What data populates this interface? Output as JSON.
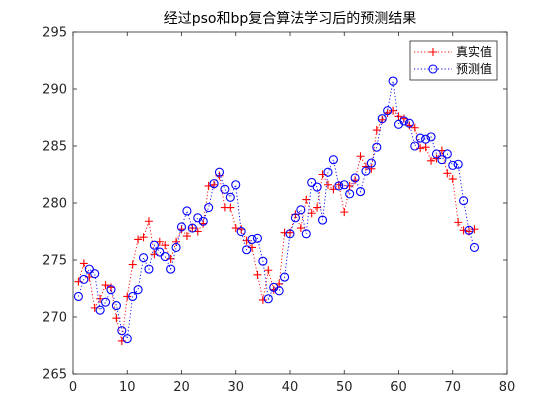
{
  "chart_data": {
    "type": "line",
    "title": "经过pso和bp复合算法学习后的预测结果",
    "xlabel": "",
    "ylabel": "",
    "xlim": [
      0,
      80
    ],
    "ylim": [
      265,
      295
    ],
    "xticks": [
      0,
      10,
      20,
      30,
      40,
      50,
      60,
      70,
      80
    ],
    "yticks": [
      265,
      270,
      275,
      280,
      285,
      290,
      295
    ],
    "grid": false,
    "legend_position": "top-right",
    "x": [
      1,
      2,
      3,
      4,
      5,
      6,
      7,
      8,
      9,
      10,
      11,
      12,
      13,
      14,
      15,
      16,
      17,
      18,
      19,
      20,
      21,
      22,
      23,
      24,
      25,
      26,
      27,
      28,
      29,
      30,
      31,
      32,
      33,
      34,
      35,
      36,
      37,
      38,
      39,
      40,
      41,
      42,
      43,
      44,
      45,
      46,
      47,
      48,
      49,
      50,
      51,
      52,
      53,
      54,
      55,
      56,
      57,
      58,
      59,
      60,
      61,
      62,
      63,
      64,
      65,
      66,
      67,
      68,
      69,
      70,
      71,
      72,
      73,
      74
    ],
    "series": [
      {
        "name": "真实值",
        "color": "#ff0000",
        "marker": "plus",
        "line_style": "dotted",
        "values": [
          273.1,
          274.7,
          273.5,
          270.8,
          271.6,
          272.8,
          272.6,
          269.9,
          267.9,
          271.8,
          274.6,
          276.8,
          277.0,
          278.4,
          275.5,
          276.6,
          276.3,
          275.1,
          276.6,
          277.7,
          277.1,
          277.8,
          277.5,
          278.2,
          281.5,
          281.6,
          282.4,
          279.6,
          279.6,
          277.8,
          277.7,
          276.7,
          276.1,
          273.7,
          271.5,
          274.1,
          272.4,
          272.9,
          277.4,
          277.4,
          279.0,
          277.8,
          280.3,
          279.1,
          279.6,
          282.5,
          281.6,
          281.2,
          281.6,
          279.2,
          281.5,
          282.0,
          284.1,
          283.2,
          283.0,
          286.4,
          287.3,
          287.9,
          288.1,
          287.6,
          287.4,
          286.8,
          286.6,
          284.8,
          284.9,
          283.7,
          283.9,
          284.6,
          282.6,
          282.1,
          278.3,
          277.6,
          277.5,
          277.7
        ]
      },
      {
        "name": "预测值",
        "color": "#0000ff",
        "marker": "circle",
        "line_style": "dotted",
        "values": [
          271.8,
          273.3,
          274.2,
          273.8,
          270.6,
          271.3,
          272.4,
          271.0,
          268.8,
          268.1,
          271.8,
          272.4,
          275.2,
          274.2,
          276.3,
          275.7,
          275.3,
          274.2,
          276.1,
          277.9,
          279.3,
          277.8,
          278.7,
          278.4,
          279.6,
          281.7,
          282.7,
          281.2,
          280.5,
          281.6,
          277.5,
          275.9,
          276.8,
          276.9,
          274.9,
          271.6,
          272.6,
          272.3,
          273.5,
          277.3,
          278.7,
          279.4,
          277.3,
          281.8,
          281.4,
          278.5,
          282.7,
          283.8,
          281.5,
          281.6,
          280.8,
          282.2,
          281.0,
          282.8,
          283.5,
          284.9,
          287.4,
          288.1,
          290.7,
          286.9,
          287.2,
          287.0,
          285.0,
          285.7,
          285.6,
          285.8,
          284.3,
          283.8,
          284.3,
          283.3,
          283.4,
          280.2,
          277.6,
          276.1
        ]
      }
    ]
  }
}
